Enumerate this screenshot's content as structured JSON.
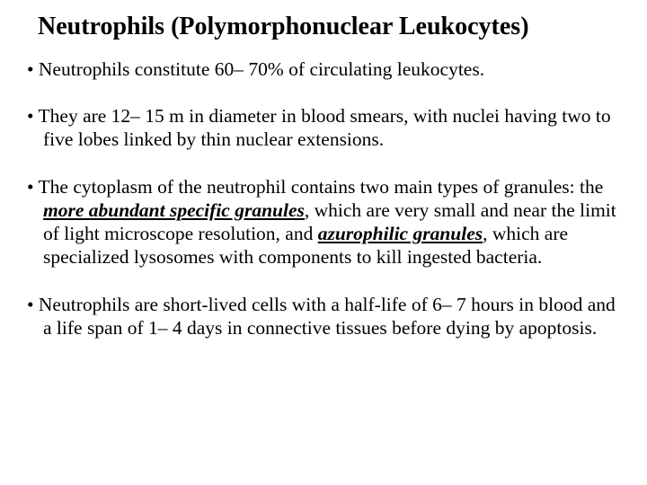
{
  "title": "Neutrophils (Polymorphonuclear Leukocytes)",
  "bullets": [
    {
      "pre": "Neutrophils constitute 60– 70% of circulating leukocytes.",
      "em1": "",
      "mid": "",
      "em2": "",
      "post": ""
    },
    {
      "pre": "They are 12– 15 m in diameter in blood smears, with nuclei having two to five lobes linked by thin nuclear extensions.",
      "em1": "",
      "mid": "",
      "em2": "",
      "post": ""
    },
    {
      "pre": "The cytoplasm of the neutrophil contains two main types of granules: the ",
      "em1": "more abundant specific granules",
      "mid": ", which are very small and near the limit of light microscope resolution, and ",
      "em2": "azurophilic granules",
      "post": ", which are specialized lysosomes with components to kill ingested bacteria."
    },
    {
      "pre": "Neutrophils are short-lived cells with a half-life of 6– 7 hours in blood and a life span of 1– 4 days in connective tissues before dying by apoptosis.",
      "em1": "",
      "mid": "",
      "em2": "",
      "post": ""
    }
  ],
  "colors": {
    "background": "#ffffff",
    "text": "#000000"
  },
  "typography": {
    "family": "Times New Roman",
    "title_size_pt": 21,
    "body_size_pt": 16,
    "title_weight": "bold"
  }
}
